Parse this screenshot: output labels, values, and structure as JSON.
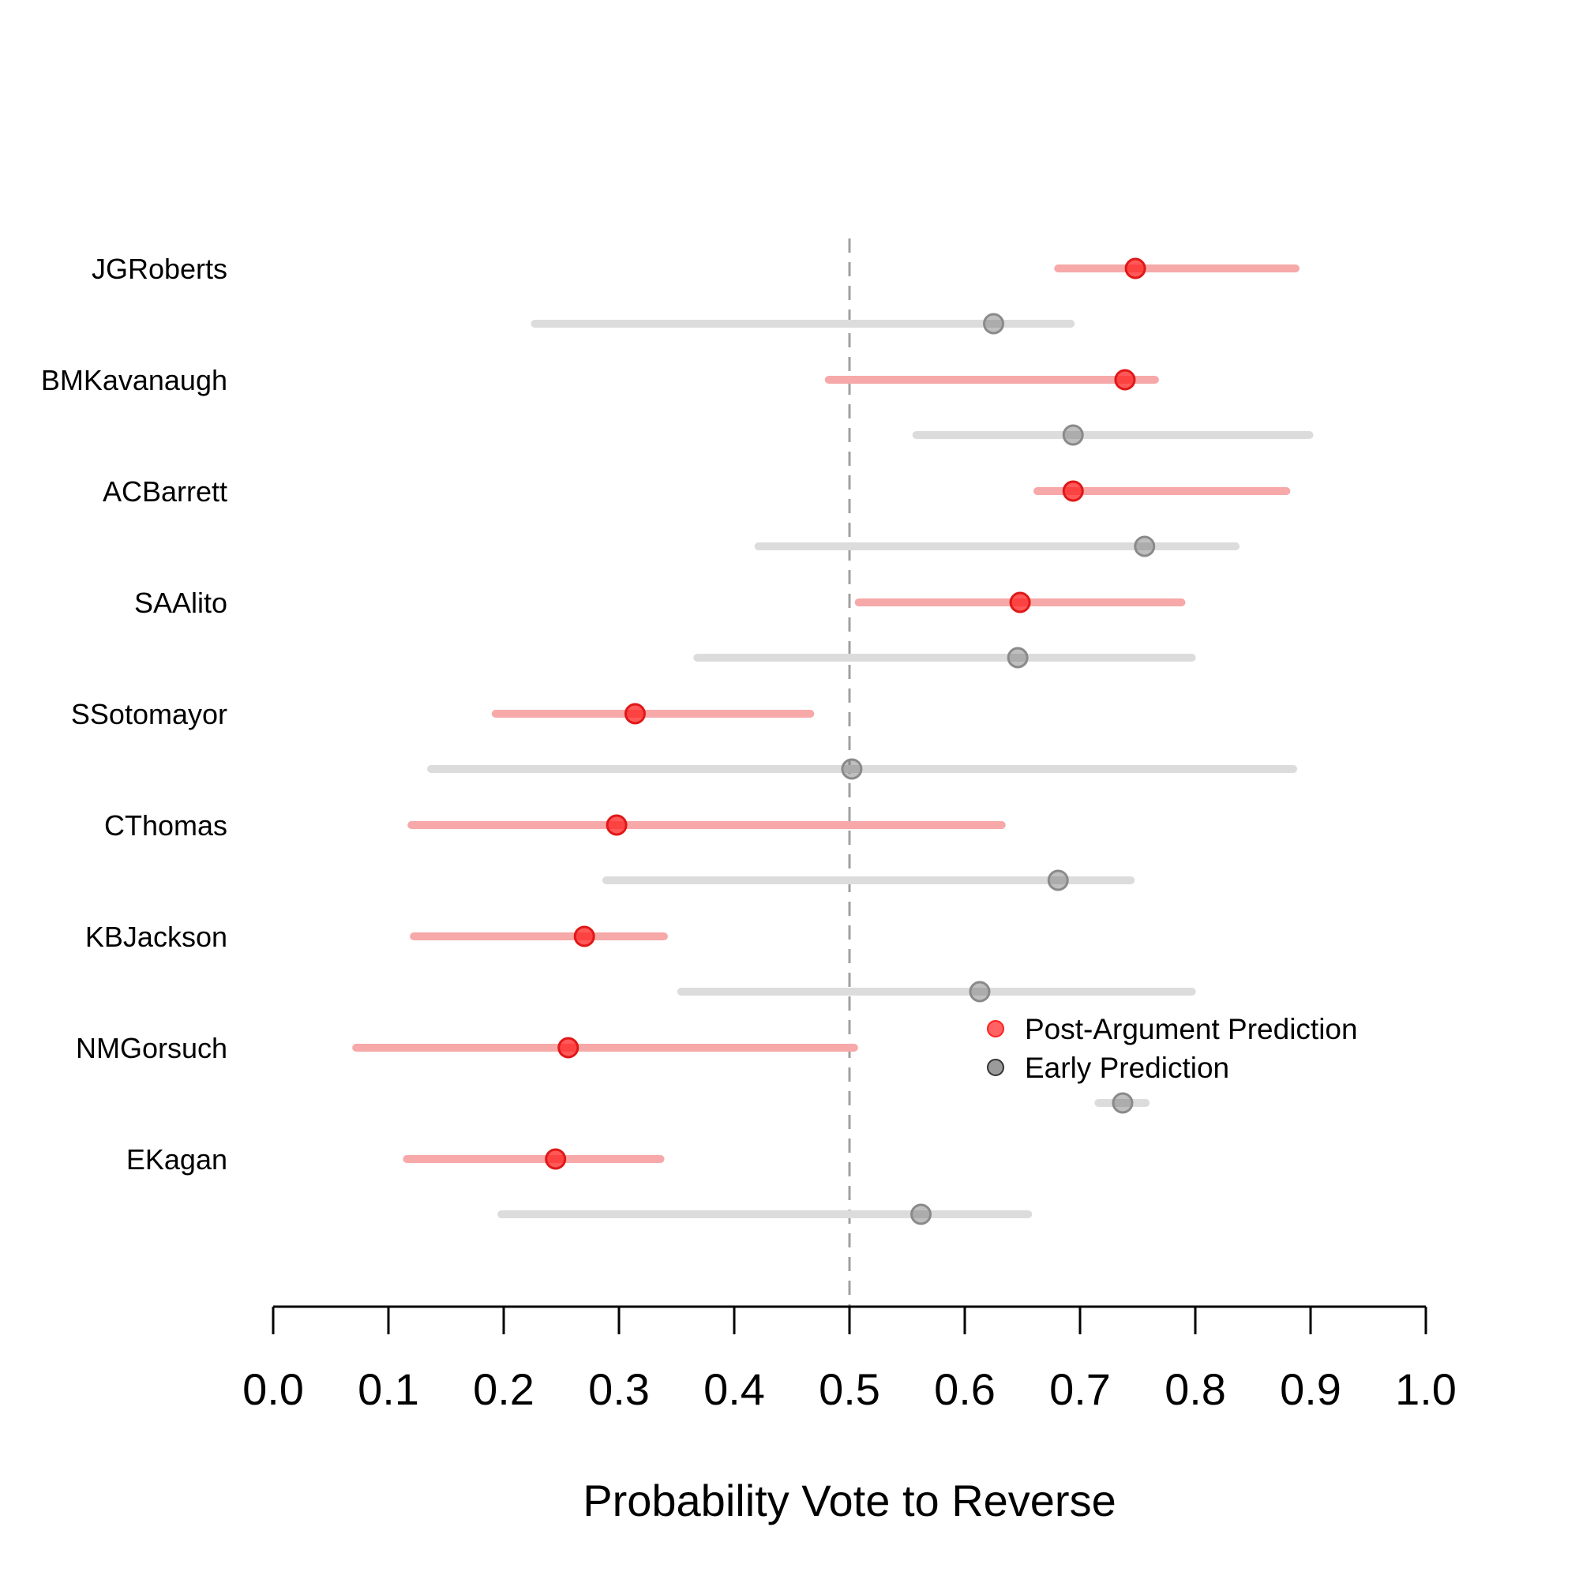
{
  "chart_data": {
    "type": "dot-interval",
    "xlabel": "Probability Vote to Reverse",
    "xlim": [
      0.0,
      1.0
    ],
    "xticks": [
      0.0,
      0.1,
      0.2,
      0.3,
      0.4,
      0.5,
      0.6,
      0.7,
      0.8,
      0.9,
      1.0
    ],
    "xtick_labels": [
      "0.0",
      "0.1",
      "0.2",
      "0.3",
      "0.4",
      "0.5",
      "0.6",
      "0.7",
      "0.8",
      "0.9",
      "1.0"
    ],
    "reference_line": 0.5,
    "categories": [
      "JGRoberts",
      "BMKavanaugh",
      "ACBarrett",
      "SAAlito",
      "SSotomayor",
      "CThomas",
      "KBJackson",
      "NMGorsuch",
      "EKagan"
    ],
    "series": [
      {
        "name": "Post-Argument Prediction",
        "color": "#ff2020",
        "interval_color": "#f7a8a8",
        "points": [
          {
            "estimate": 0.748,
            "low": 0.681,
            "high": 0.887
          },
          {
            "estimate": 0.739,
            "low": 0.482,
            "high": 0.765
          },
          {
            "estimate": 0.694,
            "low": 0.663,
            "high": 0.879
          },
          {
            "estimate": 0.648,
            "low": 0.508,
            "high": 0.788
          },
          {
            "estimate": 0.314,
            "low": 0.193,
            "high": 0.466
          },
          {
            "estimate": 0.298,
            "low": 0.12,
            "high": 0.632
          },
          {
            "estimate": 0.27,
            "low": 0.122,
            "high": 0.339
          },
          {
            "estimate": 0.256,
            "low": 0.072,
            "high": 0.504
          },
          {
            "estimate": 0.245,
            "low": 0.116,
            "high": 0.336
          }
        ]
      },
      {
        "name": "Early Prediction",
        "color": "#707070",
        "interval_color": "#dcdcdc",
        "points": [
          {
            "estimate": 0.625,
            "low": 0.227,
            "high": 0.692
          },
          {
            "estimate": 0.694,
            "low": 0.558,
            "high": 0.899
          },
          {
            "estimate": 0.756,
            "low": 0.421,
            "high": 0.835
          },
          {
            "estimate": 0.646,
            "low": 0.368,
            "high": 0.797
          },
          {
            "estimate": 0.502,
            "low": 0.137,
            "high": 0.885
          },
          {
            "estimate": 0.681,
            "low": 0.289,
            "high": 0.744
          },
          {
            "estimate": 0.613,
            "low": 0.354,
            "high": 0.797
          },
          {
            "estimate": 0.737,
            "low": 0.716,
            "high": 0.757
          },
          {
            "estimate": 0.562,
            "low": 0.198,
            "high": 0.655
          }
        ]
      }
    ],
    "legend": {
      "position": "center-right",
      "entries": [
        "Post-Argument Prediction",
        "Early Prediction"
      ]
    }
  }
}
